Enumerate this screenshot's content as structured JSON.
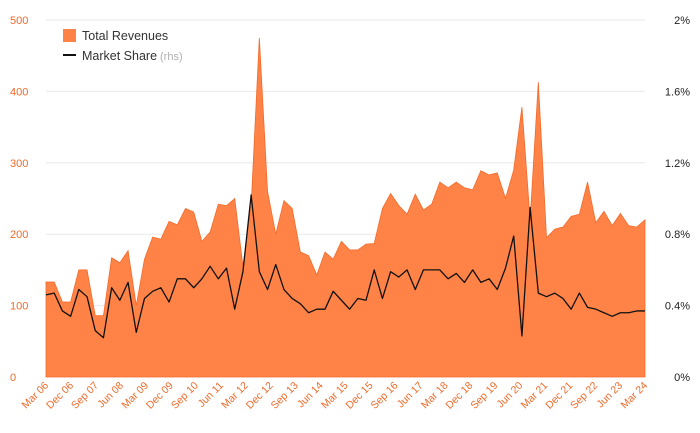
{
  "chart_data": {
    "type": "area",
    "colors": {
      "revenue": "#ff8347",
      "revenue_stroke": "#f26a2a",
      "share": "#111111",
      "left_tick": "#f06a2a",
      "right_tick": "#222222",
      "x_tick": "#f06a2a"
    },
    "y_left": {
      "ylim": [
        0,
        500
      ],
      "ticks": [
        "0",
        "100",
        "200",
        "300",
        "400",
        "500"
      ]
    },
    "y_right": {
      "ylim": [
        0,
        2
      ],
      "ticks": [
        "0%",
        "0.4%",
        "0.8%",
        "1.2%",
        "1.6%",
        "2%"
      ]
    },
    "x_ticks": [
      "Mar 06",
      "Dec 06",
      "Sep 07",
      "Jun 08",
      "Mar 09",
      "Dec 09",
      "Sep 10",
      "Jun 11",
      "Mar 12",
      "Dec 12",
      "Sep 13",
      "Jun 14",
      "Mar 15",
      "Dec 15",
      "Sep 16",
      "Jun 17",
      "Mar 18",
      "Dec 18",
      "Sep 19",
      "Jun 20",
      "Mar 21",
      "Dec 21",
      "Sep 22",
      "Jun 23",
      "Mar 24"
    ],
    "legend": {
      "placement": "top-left",
      "revenue_label": "Total Revenues",
      "share_label": "Market Share",
      "share_note": "(rhs)"
    },
    "grid": "horizontal",
    "series": [
      {
        "name": "Total Revenues",
        "axis": "left",
        "kind": "area",
        "values": [
          133,
          133,
          105,
          105,
          150,
          150,
          86,
          86,
          167,
          160,
          177,
          100,
          165,
          196,
          193,
          218,
          213,
          236,
          231,
          190,
          203,
          242,
          240,
          250,
          155,
          240,
          475,
          260,
          200,
          247,
          236,
          175,
          170,
          143,
          175,
          165,
          190,
          178,
          178,
          186,
          187,
          236,
          257,
          240,
          228,
          256,
          234,
          242,
          273,
          265,
          273,
          265,
          262,
          289,
          283,
          286,
          250,
          290,
          378,
          220,
          413,
          195,
          207,
          210,
          225,
          228,
          273,
          216,
          232,
          212,
          229,
          212,
          210,
          220
        ]
      },
      {
        "name": "Market Share",
        "axis": "right",
        "kind": "line",
        "values": [
          0.46,
          0.47,
          0.37,
          0.34,
          0.49,
          0.45,
          0.26,
          0.22,
          0.5,
          0.43,
          0.53,
          0.25,
          0.44,
          0.48,
          0.5,
          0.42,
          0.55,
          0.55,
          0.5,
          0.55,
          0.62,
          0.55,
          0.61,
          0.38,
          0.59,
          1.02,
          0.59,
          0.49,
          0.63,
          0.49,
          0.44,
          0.41,
          0.36,
          0.38,
          0.38,
          0.48,
          0.43,
          0.38,
          0.44,
          0.43,
          0.6,
          0.44,
          0.59,
          0.56,
          0.6,
          0.49,
          0.6,
          0.6,
          0.6,
          0.55,
          0.58,
          0.53,
          0.6,
          0.53,
          0.55,
          0.49,
          0.61,
          0.79,
          0.23,
          0.95,
          0.47,
          0.45,
          0.47,
          0.44,
          0.38,
          0.47,
          0.39,
          0.38,
          0.36,
          0.34,
          0.36,
          0.36,
          0.37,
          0.37
        ]
      }
    ]
  }
}
